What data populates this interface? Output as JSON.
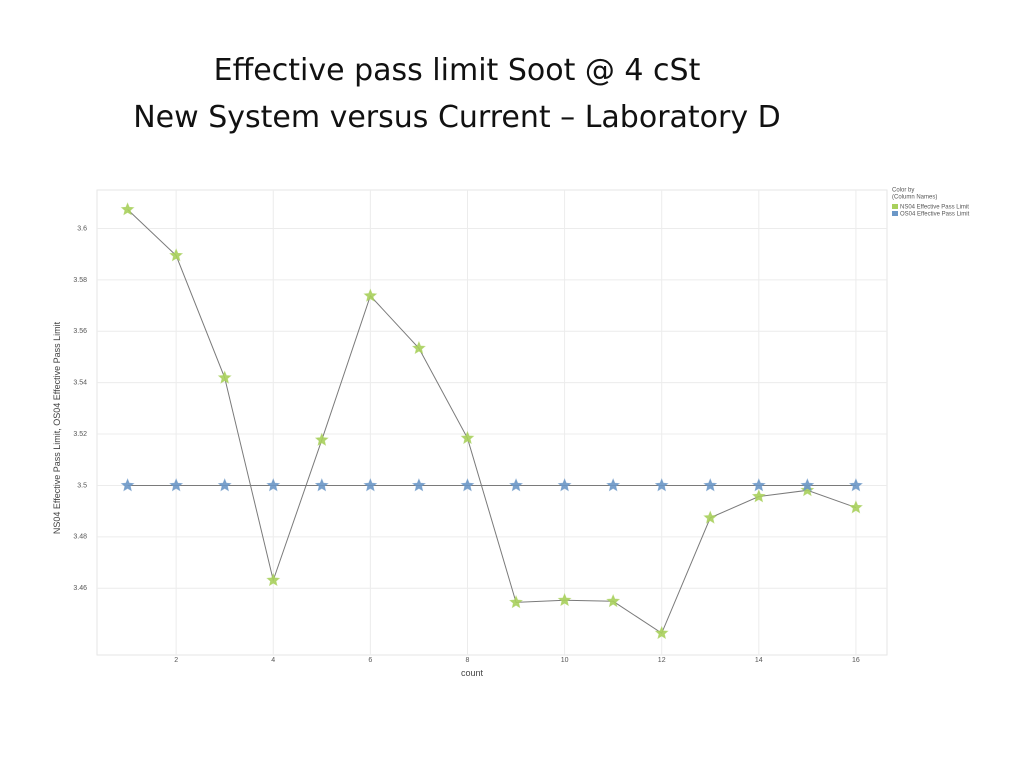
{
  "chart_data": {
    "type": "line",
    "title": [
      "Effective pass limit Soot @ 4 cSt",
      "New System versus Current – Laboratory D"
    ],
    "x_label": "count",
    "y_label": "NS04 Effective Pass Limit, OS04 Effective Pass Limit",
    "legend_title": [
      "Color by",
      "(Column Names)"
    ],
    "legend_position": "right",
    "grid": true,
    "marker": "star",
    "line_color": "#7a7a7a",
    "x": [
      1,
      2,
      3,
      4,
      5,
      6,
      7,
      8,
      9,
      10,
      11,
      12,
      13,
      14,
      15,
      16
    ],
    "series": [
      {
        "name": "NS04 Effective Pass Limit",
        "color": "#a8d05c",
        "values": [
          3.6074,
          3.5895,
          3.5419,
          3.4631,
          3.5177,
          3.5738,
          3.5534,
          3.5184,
          3.4545,
          3.4553,
          3.4549,
          3.4425,
          3.4874,
          3.4957,
          3.4981,
          3.4914
        ]
      },
      {
        "name": "OS04 Effective Pass Limit",
        "color": "#6b97c7",
        "values": [
          3.5,
          3.5,
          3.5,
          3.5,
          3.5,
          3.5,
          3.5,
          3.5,
          3.5,
          3.5,
          3.5,
          3.5,
          3.5,
          3.5,
          3.5,
          3.5
        ]
      }
    ],
    "xlim": [
      0.37,
      16.64
    ],
    "xticks": [
      2,
      4,
      6,
      8,
      10,
      12,
      14,
      16
    ],
    "ylim": [
      3.434,
      3.615
    ],
    "yticks": [
      3.46,
      3.48,
      3.5,
      3.52,
      3.54,
      3.56,
      3.58,
      3.6
    ]
  }
}
